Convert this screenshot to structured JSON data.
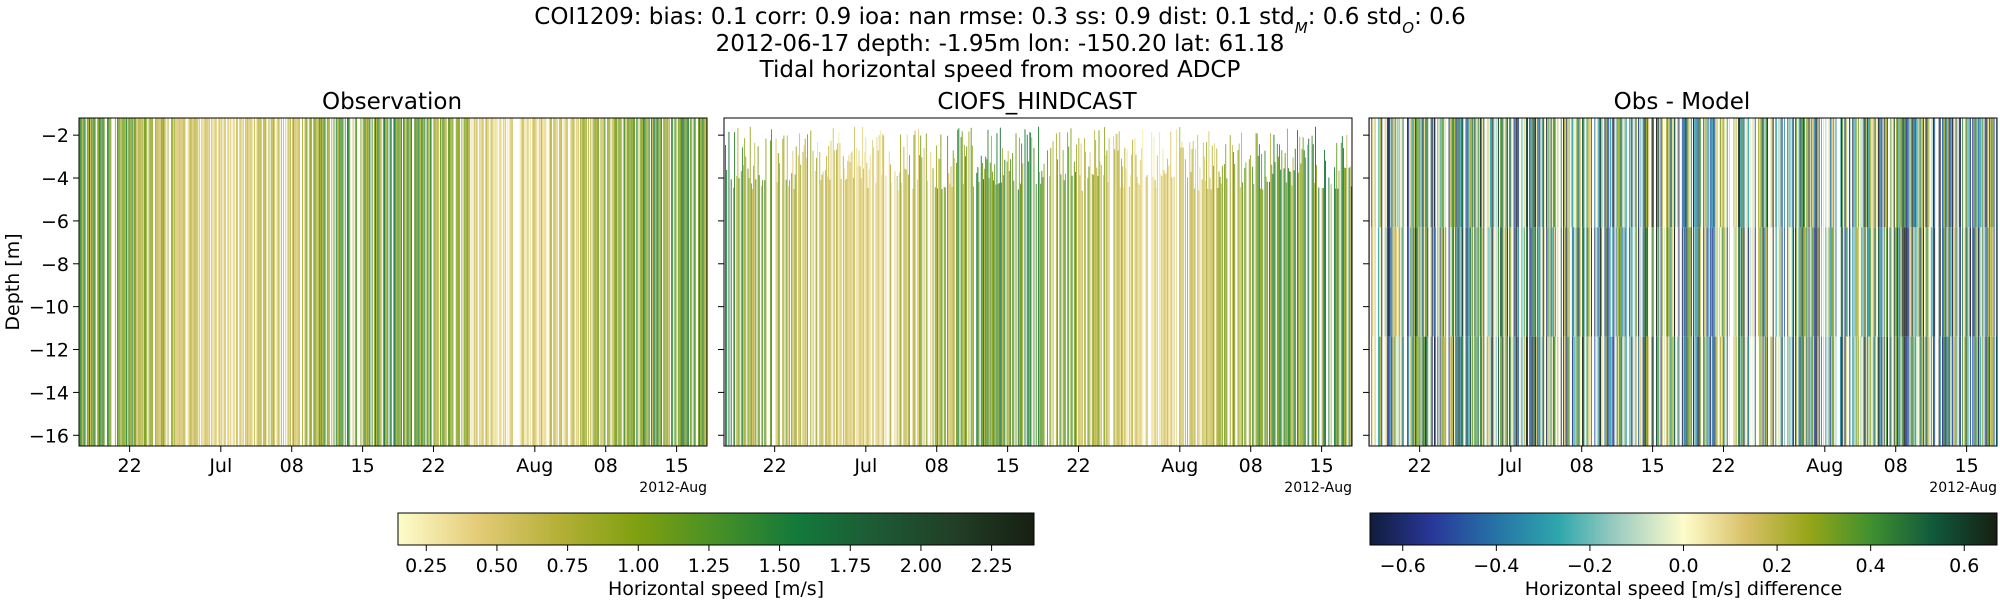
{
  "title": {
    "line1": {
      "prefix": "COI1209: bias: 0.1  corr: 0.9  ioa: nan  rmse: 0.3  ss: 0.9  dist: 0.1  std",
      "sub_m": "M",
      "middle": ": 0.6  std",
      "sub_o": "O",
      "suffix": ": 0.6"
    },
    "line2": "2012-06-17 depth: -1.95m lon: -150.20 lat: 61.18",
    "line3": "Tidal horizontal speed from moored ADCP"
  },
  "chart_data": [
    {
      "type": "heatmap",
      "title": "Observation",
      "ylabel": "Depth [m]",
      "ylim": [
        -16.5,
        -1.2
      ],
      "y_ticks": [
        -2,
        -4,
        -6,
        -8,
        -10,
        -12,
        -14,
        -16
      ],
      "x_ticks": [
        "22",
        "Jul",
        "08",
        "15",
        "22",
        "Aug",
        "08",
        "15"
      ],
      "x_tick_dates": [
        "2012-06-22",
        "2012-07-01",
        "2012-07-08",
        "2012-07-15",
        "2012-07-22",
        "2012-08-01",
        "2012-08-08",
        "2012-08-15"
      ],
      "xlim": [
        "2012-06-17",
        "2012-08-18"
      ],
      "x_offset_label": "2012-Aug",
      "colormap": "speed",
      "value_range": [
        0.15,
        2.4
      ]
    },
    {
      "type": "heatmap",
      "title": "CIOFS_HINDCAST",
      "ylim": [
        -16.5,
        -1.2
      ],
      "y_ticks": [
        -2,
        -4,
        -6,
        -8,
        -10,
        -12,
        -14,
        -16
      ],
      "x_ticks": [
        "22",
        "Jul",
        "08",
        "15",
        "22",
        "Aug",
        "08",
        "15"
      ],
      "x_tick_dates": [
        "2012-06-22",
        "2012-07-01",
        "2012-07-08",
        "2012-07-15",
        "2012-07-22",
        "2012-08-01",
        "2012-08-08",
        "2012-08-15"
      ],
      "xlim": [
        "2012-06-17",
        "2012-08-18"
      ],
      "x_offset_label": "2012-Aug",
      "colormap": "speed",
      "value_range": [
        0.15,
        2.4
      ]
    },
    {
      "type": "heatmap",
      "title": "Obs - Model",
      "ylim": [
        -16.5,
        -1.2
      ],
      "y_ticks": [
        -2,
        -4,
        -6,
        -8,
        -10,
        -12,
        -14,
        -16
      ],
      "x_ticks": [
        "22",
        "Jul",
        "08",
        "15",
        "22",
        "Aug",
        "08",
        "15"
      ],
      "x_tick_dates": [
        "2012-06-22",
        "2012-07-01",
        "2012-07-08",
        "2012-07-15",
        "2012-07-22",
        "2012-08-01",
        "2012-08-08",
        "2012-08-15"
      ],
      "xlim": [
        "2012-06-17",
        "2012-08-18"
      ],
      "x_offset_label": "2012-Aug",
      "colormap": "delta",
      "value_range": [
        -0.67,
        0.67
      ]
    }
  ],
  "colorbars": [
    {
      "label": "Horizontal speed [m/s]",
      "range": [
        0.15,
        2.4
      ],
      "ticks": [
        "0.25",
        "0.50",
        "0.75",
        "1.00",
        "1.25",
        "1.50",
        "1.75",
        "2.00",
        "2.25"
      ],
      "tick_values": [
        0.25,
        0.5,
        0.75,
        1.0,
        1.25,
        1.5,
        1.75,
        2.0,
        2.25
      ],
      "colors": [
        "#fefccb",
        "#e3cc78",
        "#b5b038",
        "#80a010",
        "#489026",
        "#137a3a",
        "#1d5a35",
        "#213f26",
        "#171f12"
      ]
    },
    {
      "label": "Horizontal speed [m/s] difference",
      "range": [
        -0.67,
        0.67
      ],
      "ticks": [
        "−0.6",
        "−0.4",
        "−0.2",
        "0.0",
        "0.2",
        "0.4",
        "0.6"
      ],
      "tick_values": [
        -0.6,
        -0.4,
        -0.2,
        0.0,
        0.2,
        0.4,
        0.6
      ],
      "colors": [
        "#111c3c",
        "#29389a",
        "#2673a6",
        "#2ea6ac",
        "#a3cfc2",
        "#fefccb",
        "#d8c068",
        "#96a618",
        "#3f9030",
        "#10583c",
        "#171f12"
      ]
    }
  ]
}
